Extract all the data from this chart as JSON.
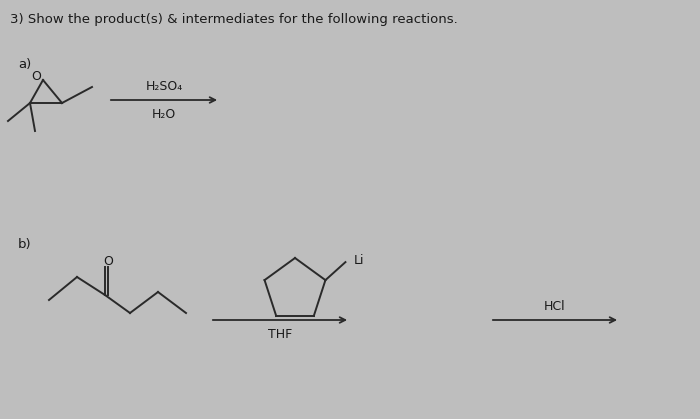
{
  "title": "3) Show the product(s) & intermediates for the following reactions.",
  "title_fontsize": 9.5,
  "title_color": "#1a1a1a",
  "bg_color": "#bebebe",
  "label_a": "a)",
  "label_b": "b)",
  "label_fontsize": 9.5,
  "reagent_a_line1": "H₂SO₄",
  "reagent_a_line2": "H₂O",
  "reagent_b_line1": "THF",
  "reagent_b_label": "HCl",
  "cyclopentyl_Li": "Li",
  "line_color": "#2a2a2a",
  "arrow_color": "#2a2a2a",
  "text_color": "#1a1a1a"
}
